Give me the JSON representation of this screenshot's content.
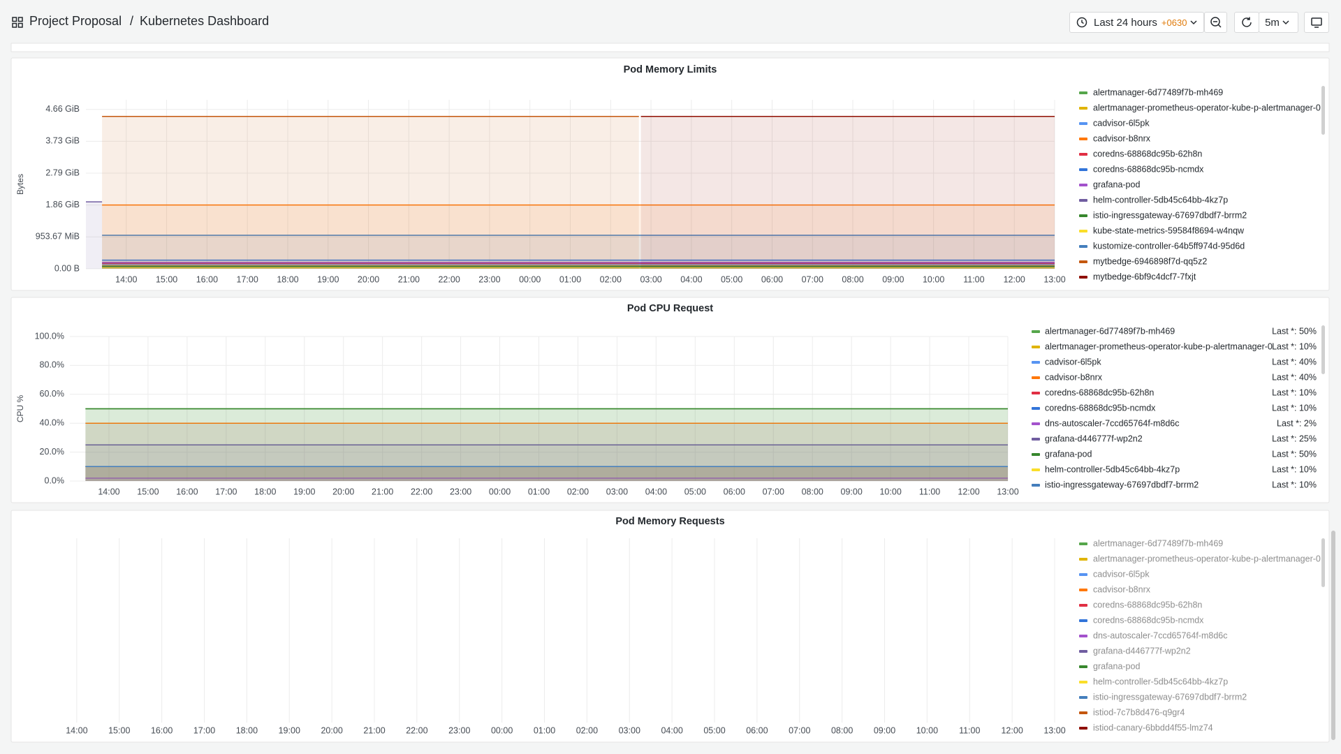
{
  "header": {
    "folder": "Project Proposal",
    "separator": "/",
    "dashboard": "Kubernetes Dashboard",
    "time_range": "Last 24 hours",
    "timezone": "+0630",
    "refresh": "5m"
  },
  "time_axis": {
    "xlim": [
      0,
      24
    ],
    "xticks": [
      {
        "value": 1,
        "label": "14:00"
      },
      {
        "value": 2,
        "label": "15:00"
      },
      {
        "value": 3,
        "label": "16:00"
      },
      {
        "value": 4,
        "label": "17:00"
      },
      {
        "value": 5,
        "label": "18:00"
      },
      {
        "value": 6,
        "label": "19:00"
      },
      {
        "value": 7,
        "label": "20:00"
      },
      {
        "value": 8,
        "label": "21:00"
      },
      {
        "value": 9,
        "label": "22:00"
      },
      {
        "value": 10,
        "label": "23:00"
      },
      {
        "value": 11,
        "label": "00:00"
      },
      {
        "value": 12,
        "label": "01:00"
      },
      {
        "value": 13,
        "label": "02:00"
      },
      {
        "value": 14,
        "label": "03:00"
      },
      {
        "value": 15,
        "label": "04:00"
      },
      {
        "value": 16,
        "label": "05:00"
      },
      {
        "value": 17,
        "label": "06:00"
      },
      {
        "value": 18,
        "label": "07:00"
      },
      {
        "value": 19,
        "label": "08:00"
      },
      {
        "value": 20,
        "label": "09:00"
      },
      {
        "value": 21,
        "label": "10:00"
      },
      {
        "value": 22,
        "label": "11:00"
      },
      {
        "value": 23,
        "label": "12:00"
      },
      {
        "value": 24,
        "label": "13:00"
      }
    ]
  },
  "panels": [
    {
      "title": "Pod Memory Limits",
      "y_label": "Bytes",
      "ylim": [
        0,
        5300000000
      ],
      "yticks": [
        {
          "value": 0,
          "label": "0.00 B"
        },
        {
          "value": 1000000000,
          "label": "953.67 MiB"
        },
        {
          "value": 2000000000,
          "label": "1.86 GiB"
        },
        {
          "value": 3000000000,
          "label": "2.79 GiB"
        },
        {
          "value": 4000000000,
          "label": "3.73 GiB"
        },
        {
          "value": 5000000000,
          "label": "4.66 GiB"
        }
      ],
      "series": [
        {
          "name": "alertmanager-6d77489f7b-mh469",
          "color": "#56a64b",
          "x": [
            0.4,
            24
          ],
          "values": [
            50000000,
            50000000
          ]
        },
        {
          "name": "alertmanager-prometheus-operator-kube-p-alertmanager-0",
          "color": "#e0b400",
          "x": [
            0.4,
            24
          ],
          "values": [
            100000000,
            100000000
          ]
        },
        {
          "name": "cadvisor-6l5pk",
          "color": "#5794f2",
          "x": [
            0.4,
            24
          ],
          "values": [
            150000000,
            150000000
          ]
        },
        {
          "name": "cadvisor-b8nrx",
          "color": "#ff780a",
          "x": [
            0.4,
            24
          ],
          "values": [
            2000000000,
            2000000000
          ]
        },
        {
          "name": "coredns-68868dc95b-62h8n",
          "color": "#e02f44",
          "x": [
            0.4,
            24
          ],
          "values": [
            170000000,
            170000000
          ]
        },
        {
          "name": "coredns-68868dc95b-ncmdx",
          "color": "#3274d9",
          "x": [
            0.4,
            24
          ],
          "values": [
            270000000,
            270000000
          ]
        },
        {
          "name": "grafana-pod",
          "color": "#a352cc",
          "x": [
            0.4,
            24
          ],
          "values": [
            200000000,
            200000000
          ]
        },
        {
          "name": "helm-controller-5db45c64bb-4kz7p",
          "color": "#705da0",
          "x": [
            0,
            0.4
          ],
          "values": [
            2100000000,
            2100000000
          ]
        },
        {
          "name": "istio-ingressgateway-67697dbdf7-brrm2",
          "color": "#37872d",
          "x": [
            0.4,
            24
          ],
          "values": [
            80000000,
            80000000
          ]
        },
        {
          "name": "kube-state-metrics-59584f8694-w4nqw",
          "color": "#fade2a",
          "x": [
            0.4,
            24
          ],
          "values": [
            30000000,
            30000000
          ]
        },
        {
          "name": "kustomize-controller-64b5ff974d-95d6d",
          "color": "#447ebc",
          "x": [
            0.4,
            24
          ],
          "values": [
            1050000000,
            1050000000
          ]
        },
        {
          "name": "mytbedge-6946898f7d-qq5z2",
          "color": "#c4570e",
          "x": [
            0.4,
            13.7
          ],
          "values": [
            4780000000,
            4780000000
          ]
        },
        {
          "name": "mytbedge-6bf9c4dcf7-7fxjt",
          "color": "#8f0f02",
          "x": [
            13.75,
            24
          ],
          "values": [
            4780000000,
            4780000000
          ]
        }
      ]
    },
    {
      "title": "Pod CPU Request",
      "y_label": "CPU %",
      "ylim": [
        0,
        100
      ],
      "yticks": [
        {
          "value": 0,
          "label": "0.0%"
        },
        {
          "value": 20,
          "label": "20.0%"
        },
        {
          "value": 40,
          "label": "40.0%"
        },
        {
          "value": 60,
          "label": "60.0%"
        },
        {
          "value": 80,
          "label": "80.0%"
        },
        {
          "value": 100,
          "label": "100.0%"
        }
      ],
      "series": [
        {
          "name": "alertmanager-6d77489f7b-mh469",
          "color": "#56a64b",
          "x": [
            0.4,
            24
          ],
          "values": [
            50,
            50
          ],
          "last_label": "Last *: 50%"
        },
        {
          "name": "alertmanager-prometheus-operator-kube-p-alertmanager-0",
          "color": "#e0b400",
          "x": [
            0.4,
            24
          ],
          "values": [
            10,
            10
          ],
          "last_label": "Last *: 10%"
        },
        {
          "name": "cadvisor-6l5pk",
          "color": "#5794f2",
          "x": [
            0.4,
            24
          ],
          "values": [
            40,
            40
          ],
          "last_label": "Last *: 40%"
        },
        {
          "name": "cadvisor-b8nrx",
          "color": "#ff780a",
          "x": [
            0.4,
            24
          ],
          "values": [
            40,
            40
          ],
          "last_label": "Last *: 40%"
        },
        {
          "name": "coredns-68868dc95b-62h8n",
          "color": "#e02f44",
          "x": [
            0.4,
            24
          ],
          "values": [
            10,
            10
          ],
          "last_label": "Last *: 10%"
        },
        {
          "name": "coredns-68868dc95b-ncmdx",
          "color": "#3274d9",
          "x": [
            0.4,
            24
          ],
          "values": [
            10,
            10
          ],
          "last_label": "Last *: 10%"
        },
        {
          "name": "dns-autoscaler-7ccd65764f-m8d6c",
          "color": "#a352cc",
          "x": [
            0.4,
            24
          ],
          "values": [
            2,
            2
          ],
          "last_label": "Last *: 2%"
        },
        {
          "name": "grafana-d446777f-wp2n2",
          "color": "#705da0",
          "x": [
            0.4,
            24
          ],
          "values": [
            25,
            25
          ],
          "last_label": "Last *: 25%"
        },
        {
          "name": "grafana-pod",
          "color": "#37872d",
          "x": [
            0.4,
            24
          ],
          "values": [
            50,
            50
          ],
          "last_label": "Last *: 50%"
        },
        {
          "name": "helm-controller-5db45c64bb-4kz7p",
          "color": "#fade2a",
          "x": [
            0.4,
            24
          ],
          "values": [
            10,
            10
          ],
          "last_label": "Last *: 10%"
        },
        {
          "name": "istio-ingressgateway-67697dbdf7-brrm2",
          "color": "#447ebc",
          "x": [
            0.4,
            24
          ],
          "values": [
            10,
            10
          ],
          "last_label": "Last *: 10%"
        }
      ]
    },
    {
      "title": "Pod Memory Requests",
      "legend": [
        {
          "name": "alertmanager-6d77489f7b-mh469",
          "color": "#56a64b"
        },
        {
          "name": "alertmanager-prometheus-operator-kube-p-alertmanager-0",
          "color": "#e0b400"
        },
        {
          "name": "cadvisor-6l5pk",
          "color": "#5794f2"
        },
        {
          "name": "cadvisor-b8nrx",
          "color": "#ff780a"
        },
        {
          "name": "coredns-68868dc95b-62h8n",
          "color": "#e02f44"
        },
        {
          "name": "coredns-68868dc95b-ncmdx",
          "color": "#3274d9"
        },
        {
          "name": "dns-autoscaler-7ccd65764f-m8d6c",
          "color": "#a352cc"
        },
        {
          "name": "grafana-d446777f-wp2n2",
          "color": "#705da0"
        },
        {
          "name": "grafana-pod",
          "color": "#37872d"
        },
        {
          "name": "helm-controller-5db45c64bb-4kz7p",
          "color": "#fade2a"
        },
        {
          "name": "istio-ingressgateway-67697dbdf7-brrm2",
          "color": "#447ebc"
        },
        {
          "name": "istiod-7c7b8d476-q9gr4",
          "color": "#c4570e"
        },
        {
          "name": "istiod-canary-6bbdd4f55-lmz74",
          "color": "#8f0f02"
        }
      ]
    }
  ]
}
